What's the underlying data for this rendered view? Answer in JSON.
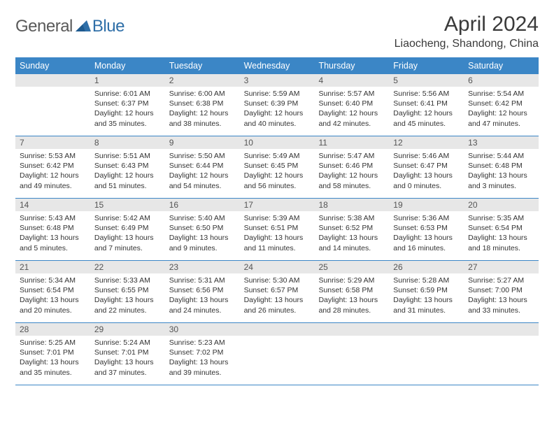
{
  "brand": {
    "part1": "General",
    "part2": "Blue",
    "mark_color": "#2f6fa8",
    "text1_color": "#5a5a5a"
  },
  "title": "April 2024",
  "location": "Liaocheng, Shandong, China",
  "colors": {
    "header_bg": "#3b86c6",
    "header_text": "#ffffff",
    "row_border": "#3b86c6",
    "daynum_bg": "#e7e7e7",
    "text": "#333333"
  },
  "day_names": [
    "Sunday",
    "Monday",
    "Tuesday",
    "Wednesday",
    "Thursday",
    "Friday",
    "Saturday"
  ],
  "weeks": [
    [
      {
        "n": "",
        "sr": "",
        "ss": "",
        "dl": ""
      },
      {
        "n": "1",
        "sr": "Sunrise: 6:01 AM",
        "ss": "Sunset: 6:37 PM",
        "dl": "Daylight: 12 hours and 35 minutes."
      },
      {
        "n": "2",
        "sr": "Sunrise: 6:00 AM",
        "ss": "Sunset: 6:38 PM",
        "dl": "Daylight: 12 hours and 38 minutes."
      },
      {
        "n": "3",
        "sr": "Sunrise: 5:59 AM",
        "ss": "Sunset: 6:39 PM",
        "dl": "Daylight: 12 hours and 40 minutes."
      },
      {
        "n": "4",
        "sr": "Sunrise: 5:57 AM",
        "ss": "Sunset: 6:40 PM",
        "dl": "Daylight: 12 hours and 42 minutes."
      },
      {
        "n": "5",
        "sr": "Sunrise: 5:56 AM",
        "ss": "Sunset: 6:41 PM",
        "dl": "Daylight: 12 hours and 45 minutes."
      },
      {
        "n": "6",
        "sr": "Sunrise: 5:54 AM",
        "ss": "Sunset: 6:42 PM",
        "dl": "Daylight: 12 hours and 47 minutes."
      }
    ],
    [
      {
        "n": "7",
        "sr": "Sunrise: 5:53 AM",
        "ss": "Sunset: 6:42 PM",
        "dl": "Daylight: 12 hours and 49 minutes."
      },
      {
        "n": "8",
        "sr": "Sunrise: 5:51 AM",
        "ss": "Sunset: 6:43 PM",
        "dl": "Daylight: 12 hours and 51 minutes."
      },
      {
        "n": "9",
        "sr": "Sunrise: 5:50 AM",
        "ss": "Sunset: 6:44 PM",
        "dl": "Daylight: 12 hours and 54 minutes."
      },
      {
        "n": "10",
        "sr": "Sunrise: 5:49 AM",
        "ss": "Sunset: 6:45 PM",
        "dl": "Daylight: 12 hours and 56 minutes."
      },
      {
        "n": "11",
        "sr": "Sunrise: 5:47 AM",
        "ss": "Sunset: 6:46 PM",
        "dl": "Daylight: 12 hours and 58 minutes."
      },
      {
        "n": "12",
        "sr": "Sunrise: 5:46 AM",
        "ss": "Sunset: 6:47 PM",
        "dl": "Daylight: 13 hours and 0 minutes."
      },
      {
        "n": "13",
        "sr": "Sunrise: 5:44 AM",
        "ss": "Sunset: 6:48 PM",
        "dl": "Daylight: 13 hours and 3 minutes."
      }
    ],
    [
      {
        "n": "14",
        "sr": "Sunrise: 5:43 AM",
        "ss": "Sunset: 6:48 PM",
        "dl": "Daylight: 13 hours and 5 minutes."
      },
      {
        "n": "15",
        "sr": "Sunrise: 5:42 AM",
        "ss": "Sunset: 6:49 PM",
        "dl": "Daylight: 13 hours and 7 minutes."
      },
      {
        "n": "16",
        "sr": "Sunrise: 5:40 AM",
        "ss": "Sunset: 6:50 PM",
        "dl": "Daylight: 13 hours and 9 minutes."
      },
      {
        "n": "17",
        "sr": "Sunrise: 5:39 AM",
        "ss": "Sunset: 6:51 PM",
        "dl": "Daylight: 13 hours and 11 minutes."
      },
      {
        "n": "18",
        "sr": "Sunrise: 5:38 AM",
        "ss": "Sunset: 6:52 PM",
        "dl": "Daylight: 13 hours and 14 minutes."
      },
      {
        "n": "19",
        "sr": "Sunrise: 5:36 AM",
        "ss": "Sunset: 6:53 PM",
        "dl": "Daylight: 13 hours and 16 minutes."
      },
      {
        "n": "20",
        "sr": "Sunrise: 5:35 AM",
        "ss": "Sunset: 6:54 PM",
        "dl": "Daylight: 13 hours and 18 minutes."
      }
    ],
    [
      {
        "n": "21",
        "sr": "Sunrise: 5:34 AM",
        "ss": "Sunset: 6:54 PM",
        "dl": "Daylight: 13 hours and 20 minutes."
      },
      {
        "n": "22",
        "sr": "Sunrise: 5:33 AM",
        "ss": "Sunset: 6:55 PM",
        "dl": "Daylight: 13 hours and 22 minutes."
      },
      {
        "n": "23",
        "sr": "Sunrise: 5:31 AM",
        "ss": "Sunset: 6:56 PM",
        "dl": "Daylight: 13 hours and 24 minutes."
      },
      {
        "n": "24",
        "sr": "Sunrise: 5:30 AM",
        "ss": "Sunset: 6:57 PM",
        "dl": "Daylight: 13 hours and 26 minutes."
      },
      {
        "n": "25",
        "sr": "Sunrise: 5:29 AM",
        "ss": "Sunset: 6:58 PM",
        "dl": "Daylight: 13 hours and 28 minutes."
      },
      {
        "n": "26",
        "sr": "Sunrise: 5:28 AM",
        "ss": "Sunset: 6:59 PM",
        "dl": "Daylight: 13 hours and 31 minutes."
      },
      {
        "n": "27",
        "sr": "Sunrise: 5:27 AM",
        "ss": "Sunset: 7:00 PM",
        "dl": "Daylight: 13 hours and 33 minutes."
      }
    ],
    [
      {
        "n": "28",
        "sr": "Sunrise: 5:25 AM",
        "ss": "Sunset: 7:01 PM",
        "dl": "Daylight: 13 hours and 35 minutes."
      },
      {
        "n": "29",
        "sr": "Sunrise: 5:24 AM",
        "ss": "Sunset: 7:01 PM",
        "dl": "Daylight: 13 hours and 37 minutes."
      },
      {
        "n": "30",
        "sr": "Sunrise: 5:23 AM",
        "ss": "Sunset: 7:02 PM",
        "dl": "Daylight: 13 hours and 39 minutes."
      },
      {
        "n": "",
        "sr": "",
        "ss": "",
        "dl": ""
      },
      {
        "n": "",
        "sr": "",
        "ss": "",
        "dl": ""
      },
      {
        "n": "",
        "sr": "",
        "ss": "",
        "dl": ""
      },
      {
        "n": "",
        "sr": "",
        "ss": "",
        "dl": ""
      }
    ]
  ]
}
